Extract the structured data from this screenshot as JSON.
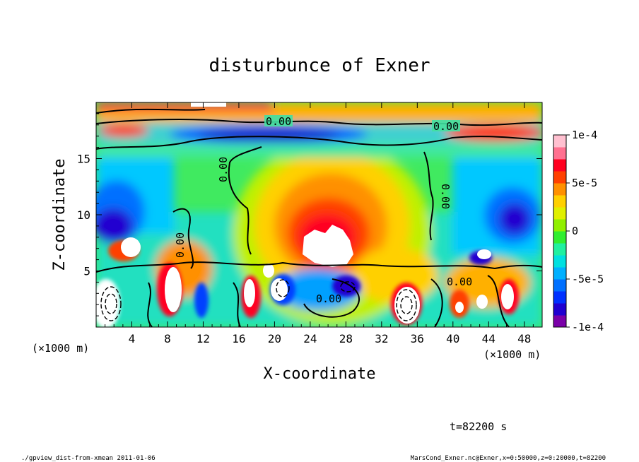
{
  "chart_data": {
    "type": "heatmap",
    "title": "disturbunce of Exner",
    "xlabel": "X-coordinate",
    "ylabel": "Z-coordinate",
    "x_unit": "(×1000 m)",
    "y_unit": "(×1000 m)",
    "xlim": [
      0,
      50
    ],
    "ylim": [
      0,
      20
    ],
    "x_ticks": [
      4,
      8,
      12,
      16,
      20,
      24,
      28,
      32,
      36,
      40,
      44,
      48
    ],
    "y_ticks": [
      5,
      10,
      15
    ],
    "colorbar": {
      "min": -0.0001,
      "max": 0.0001,
      "tick_labels": [
        "1e-4",
        "5e-5",
        "0",
        "-5e-5",
        "-1e-4"
      ],
      "tick_values": [
        0.0001,
        5e-05,
        0,
        -5e-05,
        -0.0001
      ],
      "colors": [
        "#7a00a8",
        "#2000d0",
        "#0030ff",
        "#0070ff",
        "#00b0ff",
        "#00e0e0",
        "#20f0a0",
        "#30ee30",
        "#90f000",
        "#e0f000",
        "#ffd000",
        "#ff9000",
        "#ff4000",
        "#ff0020",
        "#ff7090",
        "#ffc0d0"
      ]
    },
    "contour_labels": [
      "0.00",
      "0.00",
      "0.00",
      "0.00",
      "0.00",
      "0.00",
      "0.00"
    ],
    "features": [
      {
        "kind": "positive-max",
        "x": 26,
        "z": 8.5,
        "value": 0.0001
      },
      {
        "kind": "negative-band",
        "x": 24,
        "z": 17.2,
        "value": -8e-05
      },
      {
        "kind": "positive-band",
        "x": 45,
        "z": 17,
        "value": 7e-05
      },
      {
        "kind": "negative",
        "x": 47,
        "z": 10,
        "value": -8e-05
      },
      {
        "kind": "negative",
        "x": 2,
        "z": 10,
        "value": -8e-05
      },
      {
        "kind": "positive",
        "x": 1,
        "z": 19.5,
        "value": 8e-05
      }
    ]
  },
  "annotations": {
    "time": "t=82200 s",
    "footer_left": "./gpview_dist-from-xmean  2011-01-06",
    "footer_right": "MarsCond_Exner.nc@Exner,x=0:50000,z=0:20000,t=82200"
  }
}
